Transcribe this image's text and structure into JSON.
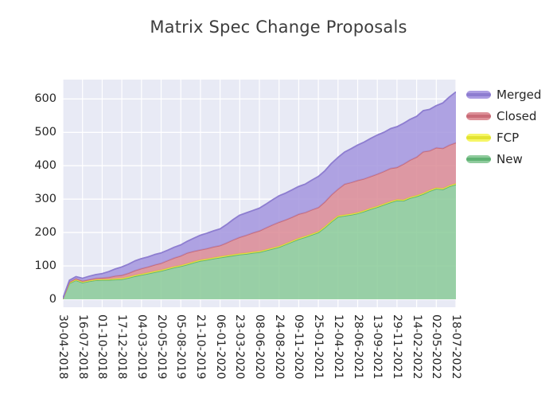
{
  "title": "Matrix Spec Change Proposals",
  "colors": {
    "plot_background": "#e8eaf5",
    "gridline": "#ffffff",
    "title_text": "#3d3d3d",
    "tick_text": "#262626"
  },
  "legend": {
    "position": "right",
    "items": [
      {
        "label": "Merged",
        "fill": "#ab9ce2",
        "line": "#8d7dd0"
      },
      {
        "label": "Closed",
        "fill": "#dd9098",
        "line": "#c96b77"
      },
      {
        "label": "FCP",
        "fill": "#f6f666",
        "line": "#e3e332"
      },
      {
        "label": "New",
        "fill": "#90cb9d",
        "line": "#5fb273"
      }
    ]
  },
  "chart_data": {
    "type": "area",
    "stacked": true,
    "title": "Matrix Spec Change Proposals",
    "xlabel": "",
    "ylabel": "",
    "grid": true,
    "legend_position": "right",
    "ylim": [
      -24,
      658
    ],
    "yticks": [
      0,
      100,
      200,
      300,
      400,
      500,
      600
    ],
    "tick_labels": [
      "30-04-2018",
      "16-07-2018",
      "01-10-2018",
      "17-12-2018",
      "04-03-2019",
      "20-05-2019",
      "05-08-2019",
      "21-10-2019",
      "06-01-2020",
      "23-03-2020",
      "08-06-2020",
      "24-08-2020",
      "09-11-2020",
      "25-01-2021",
      "12-04-2021",
      "28-06-2021",
      "13-09-2021",
      "29-11-2021",
      "14-02-2022",
      "02-05-2022",
      "18-07-2022"
    ],
    "x": [
      "30-04-2018",
      "26-05-2018",
      "20-06-2018",
      "16-07-2018",
      "11-08-2018",
      "05-09-2018",
      "01-10-2018",
      "27-10-2018",
      "21-11-2018",
      "17-12-2018",
      "12-01-2019",
      "06-02-2019",
      "04-03-2019",
      "30-03-2019",
      "24-04-2019",
      "20-05-2019",
      "15-06-2019",
      "10-07-2019",
      "05-08-2019",
      "31-08-2019",
      "25-09-2019",
      "21-10-2019",
      "16-11-2019",
      "11-12-2019",
      "06-01-2020",
      "01-02-2020",
      "26-02-2020",
      "23-03-2020",
      "18-04-2020",
      "13-05-2020",
      "08-06-2020",
      "04-07-2020",
      "29-07-2020",
      "24-08-2020",
      "19-09-2020",
      "14-10-2020",
      "09-11-2020",
      "05-12-2020",
      "30-12-2020",
      "25-01-2021",
      "20-02-2021",
      "17-03-2021",
      "12-04-2021",
      "08-05-2021",
      "02-06-2021",
      "28-06-2021",
      "24-07-2021",
      "18-08-2021",
      "13-09-2021",
      "09-10-2021",
      "03-11-2021",
      "29-11-2021",
      "25-12-2021",
      "19-01-2022",
      "14-02-2022",
      "12-03-2022",
      "06-04-2022",
      "02-05-2022",
      "28-05-2022",
      "22-06-2022",
      "18-07-2022"
    ],
    "series": [
      {
        "name": "New",
        "fill": "#8aca98",
        "line": "#5fb273",
        "values": [
          1,
          48,
          57,
          50,
          54,
          57,
          58,
          58,
          59,
          60,
          64,
          69,
          73,
          77,
          81,
          85,
          90,
          95,
          99,
          104,
          110,
          115,
          118,
          122,
          125,
          128,
          131,
          134,
          136,
          139,
          141,
          146,
          151,
          156,
          164,
          172,
          180,
          186,
          193,
          200,
          215,
          232,
          247,
          250,
          253,
          257,
          263,
          270,
          276,
          283,
          290,
          296,
          295,
          303,
          308,
          315,
          324,
          331,
          329,
          338,
          344
        ]
      },
      {
        "name": "FCP",
        "fill": "#f3f355",
        "line": "#e3e332",
        "values": [
          0.5,
          2,
          2,
          2,
          2,
          2,
          2,
          2,
          3,
          3,
          3,
          3,
          3,
          3,
          3,
          3,
          3,
          3,
          3,
          3,
          3,
          3,
          3,
          3,
          3,
          3,
          3,
          3,
          3,
          3,
          3,
          3,
          3,
          3,
          3,
          3,
          3,
          3,
          3,
          3,
          3,
          3,
          3,
          3,
          3,
          3,
          3,
          3,
          3,
          3,
          3,
          3,
          3,
          3,
          3,
          3,
          3,
          3,
          3,
          3,
          3
        ]
      },
      {
        "name": "Closed",
        "fill": "#da8a94",
        "line": "#c96b77",
        "values": [
          0.5,
          2,
          3,
          3,
          3,
          4,
          4,
          6,
          8,
          9,
          11,
          14,
          16,
          17,
          19,
          20,
          23,
          26,
          28,
          32,
          31,
          30,
          31,
          32,
          33,
          38,
          44,
          49,
          53,
          57,
          61,
          65,
          69,
          72,
          71,
          71,
          72,
          71,
          72,
          72,
          74,
          78,
          80,
          92,
          94,
          96,
          95,
          95,
          96,
          97,
          99,
          96,
          107,
          111,
          115,
          124,
          118,
          120,
          120,
          121,
          122
        ]
      },
      {
        "name": "Merged",
        "fill": "#a395de",
        "line": "#8d7dd0",
        "values": [
          1,
          5,
          6,
          8,
          10,
          11,
          13,
          17,
          21,
          25,
          27,
          29,
          30,
          30,
          31,
          31,
          31,
          32,
          33,
          35,
          39,
          44,
          46,
          48,
          50,
          55,
          61,
          66,
          67,
          67,
          68,
          71,
          75,
          79,
          80,
          82,
          83,
          85,
          89,
          93,
          93,
          94,
          95,
          96,
          101,
          106,
          110,
          114,
          117,
          117,
          119,
          122,
          122,
          122,
          122,
          123,
          124,
          126,
          136,
          144,
          152
        ]
      }
    ]
  }
}
